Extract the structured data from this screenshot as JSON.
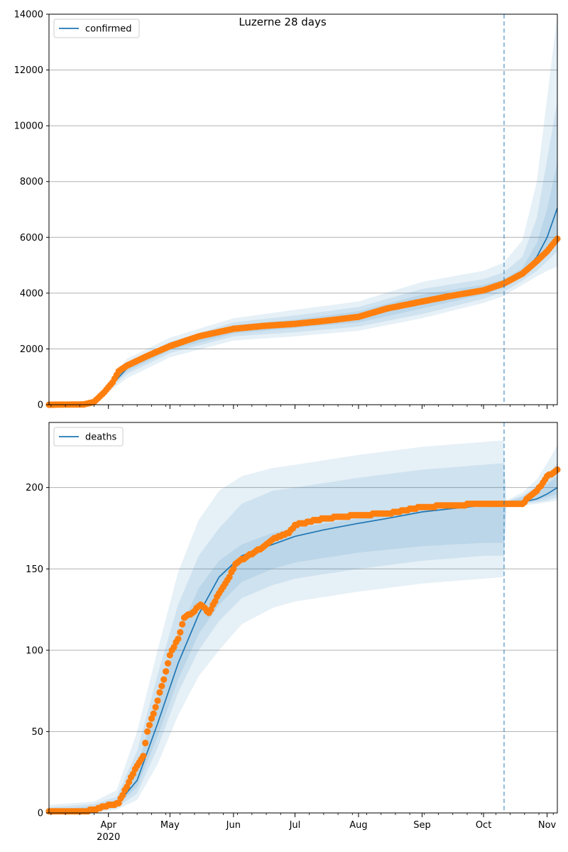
{
  "figure": {
    "title": "Luzerne 28 days"
  },
  "chart_data": [
    {
      "type": "line",
      "title": "Luzerne 28 days",
      "series": [
        {
          "name": "confirmed"
        },
        {
          "name": "observed"
        }
      ],
      "legend": "confirmed",
      "legend_position": "top-left",
      "grid": "horizontal",
      "ylim": [
        0,
        14000
      ],
      "yticks": [
        0,
        2000,
        4000,
        6000,
        8000,
        10000,
        12000,
        14000
      ],
      "ytick_labels": [
        "0",
        "2000",
        "4000",
        "6000",
        "8000",
        "10000",
        "12000",
        "14000"
      ],
      "xlim": [
        "2020-03-03",
        "2020-11-06"
      ],
      "forecast_start": "2020-10-11",
      "model_points": [
        [
          "2020-03-03",
          0
        ],
        [
          "2020-03-20",
          10
        ],
        [
          "2020-03-25",
          100
        ],
        [
          "2020-03-30",
          400
        ],
        [
          "2020-04-05",
          900
        ],
        [
          "2020-04-10",
          1300
        ],
        [
          "2020-04-20",
          1700
        ],
        [
          "2020-05-01",
          2050
        ],
        [
          "2020-05-15",
          2400
        ],
        [
          "2020-06-01",
          2700
        ],
        [
          "2020-06-15",
          2800
        ],
        [
          "2020-07-01",
          2900
        ],
        [
          "2020-07-15",
          3000
        ],
        [
          "2020-08-01",
          3150
        ],
        [
          "2020-08-15",
          3450
        ],
        [
          "2020-09-01",
          3700
        ],
        [
          "2020-09-15",
          3900
        ],
        [
          "2020-10-01",
          4100
        ],
        [
          "2020-10-11",
          4350
        ],
        [
          "2020-10-20",
          4700
        ],
        [
          "2020-10-27",
          5300
        ],
        [
          "2020-11-01",
          6000
        ],
        [
          "2020-11-06",
          7050
        ]
      ],
      "observed_points": [
        [
          "2020-03-03",
          0
        ],
        [
          "2020-03-20",
          10
        ],
        [
          "2020-03-25",
          100
        ],
        [
          "2020-03-30",
          450
        ],
        [
          "2020-04-03",
          800
        ],
        [
          "2020-04-06",
          1200
        ],
        [
          "2020-04-10",
          1400
        ],
        [
          "2020-04-20",
          1750
        ],
        [
          "2020-05-01",
          2100
        ],
        [
          "2020-05-15",
          2450
        ],
        [
          "2020-06-01",
          2720
        ],
        [
          "2020-06-15",
          2820
        ],
        [
          "2020-07-01",
          2900
        ],
        [
          "2020-07-15",
          3000
        ],
        [
          "2020-08-01",
          3150
        ],
        [
          "2020-08-15",
          3450
        ],
        [
          "2020-09-01",
          3700
        ],
        [
          "2020-09-15",
          3900
        ],
        [
          "2020-10-01",
          4100
        ],
        [
          "2020-10-11",
          4350
        ],
        [
          "2020-10-20",
          4700
        ],
        [
          "2020-10-27",
          5150
        ],
        [
          "2020-11-01",
          5500
        ],
        [
          "2020-11-06",
          5950
        ]
      ],
      "band_points": [
        {
          "x": "2020-03-03",
          "q": [
            0,
            0,
            0,
            0,
            0,
            0
          ]
        },
        {
          "x": "2020-03-25",
          "q": [
            70,
            85,
            95,
            105,
            120,
            140
          ]
        },
        {
          "x": "2020-04-10",
          "q": [
            950,
            1100,
            1200,
            1380,
            1500,
            1650
          ]
        },
        {
          "x": "2020-05-01",
          "q": [
            1700,
            1850,
            1950,
            2150,
            2250,
            2400
          ]
        },
        {
          "x": "2020-06-01",
          "q": [
            2300,
            2450,
            2550,
            2850,
            2950,
            3100
          ]
        },
        {
          "x": "2020-07-01",
          "q": [
            2450,
            2600,
            2750,
            3050,
            3200,
            3400
          ]
        },
        {
          "x": "2020-08-01",
          "q": [
            2650,
            2800,
            2950,
            3350,
            3500,
            3700
          ]
        },
        {
          "x": "2020-09-01",
          "q": [
            3100,
            3250,
            3450,
            3950,
            4150,
            4400
          ]
        },
        {
          "x": "2020-10-01",
          "q": [
            3650,
            3800,
            3950,
            4300,
            4500,
            4800
          ]
        },
        {
          "x": "2020-10-11",
          "q": [
            3900,
            4050,
            4200,
            4500,
            4750,
            5100
          ]
        },
        {
          "x": "2020-10-20",
          "q": [
            4300,
            4450,
            4600,
            4900,
            5300,
            5900
          ]
        },
        {
          "x": "2020-10-27",
          "q": [
            4600,
            4800,
            5000,
            5800,
            6700,
            8000
          ]
        },
        {
          "x": "2020-11-01",
          "q": [
            4800,
            5150,
            5500,
            7000,
            8800,
            11000
          ]
        },
        {
          "x": "2020-11-06",
          "q": [
            4950,
            5500,
            6100,
            8700,
            10900,
            14000
          ]
        }
      ]
    },
    {
      "type": "line",
      "series": [
        {
          "name": "deaths"
        },
        {
          "name": "observed"
        }
      ],
      "legend": "deaths",
      "legend_position": "top-left",
      "grid": "horizontal",
      "ylim": [
        0,
        240
      ],
      "yticks": [
        0,
        50,
        100,
        150,
        200
      ],
      "ytick_labels": [
        "0",
        "50",
        "100",
        "150",
        "200"
      ],
      "xlim": [
        "2020-03-03",
        "2020-11-06"
      ],
      "xtick_labels": [
        "Apr",
        "May",
        "Jun",
        "Jul",
        "Aug",
        "Sep",
        "Oct",
        "Nov"
      ],
      "xtick_dates": [
        "2020-04-01",
        "2020-05-01",
        "2020-06-01",
        "2020-07-01",
        "2020-08-01",
        "2020-09-01",
        "2020-10-01",
        "2020-11-01"
      ],
      "year_label": "2020",
      "forecast_start": "2020-10-11",
      "model_points": [
        [
          "2020-03-03",
          1
        ],
        [
          "2020-03-25",
          2
        ],
        [
          "2020-04-05",
          5
        ],
        [
          "2020-04-15",
          20
        ],
        [
          "2020-04-25",
          55
        ],
        [
          "2020-05-05",
          92
        ],
        [
          "2020-05-15",
          122
        ],
        [
          "2020-05-25",
          145
        ],
        [
          "2020-06-05",
          158
        ],
        [
          "2020-06-20",
          165
        ],
        [
          "2020-07-01",
          170
        ],
        [
          "2020-07-15",
          174
        ],
        [
          "2020-08-01",
          178
        ],
        [
          "2020-08-15",
          181
        ],
        [
          "2020-09-01",
          185
        ],
        [
          "2020-09-15",
          187
        ],
        [
          "2020-10-01",
          189
        ],
        [
          "2020-10-11",
          190
        ],
        [
          "2020-10-20",
          191
        ],
        [
          "2020-10-27",
          193
        ],
        [
          "2020-11-01",
          196
        ],
        [
          "2020-11-06",
          200
        ]
      ],
      "observed_points": [
        [
          "2020-03-03",
          1
        ],
        [
          "2020-03-20",
          1
        ],
        [
          "2020-03-25",
          2
        ],
        [
          "2020-03-30",
          4
        ],
        [
          "2020-04-03",
          5
        ],
        [
          "2020-04-06",
          6
        ],
        [
          "2020-04-10",
          16
        ],
        [
          "2020-04-14",
          27
        ],
        [
          "2020-04-18",
          35
        ],
        [
          "2020-04-20",
          50
        ],
        [
          "2020-04-24",
          65
        ],
        [
          "2020-04-28",
          82
        ],
        [
          "2020-05-01",
          97
        ],
        [
          "2020-05-05",
          107
        ],
        [
          "2020-05-08",
          120
        ],
        [
          "2020-05-12",
          123
        ],
        [
          "2020-05-16",
          128
        ],
        [
          "2020-05-20",
          123
        ],
        [
          "2020-05-25",
          135
        ],
        [
          "2020-05-30",
          145
        ],
        [
          "2020-06-02",
          153
        ],
        [
          "2020-06-08",
          158
        ],
        [
          "2020-06-15",
          163
        ],
        [
          "2020-06-20",
          168
        ],
        [
          "2020-06-28",
          172
        ],
        [
          "2020-07-01",
          177
        ],
        [
          "2020-07-15",
          181
        ],
        [
          "2020-08-01",
          183
        ],
        [
          "2020-08-15",
          184
        ],
        [
          "2020-09-01",
          188
        ],
        [
          "2020-09-15",
          189
        ],
        [
          "2020-10-01",
          190
        ],
        [
          "2020-10-11",
          190
        ],
        [
          "2020-10-20",
          190
        ],
        [
          "2020-10-23",
          194
        ],
        [
          "2020-10-27",
          198
        ],
        [
          "2020-10-30",
          203
        ],
        [
          "2020-11-01",
          207
        ],
        [
          "2020-11-04",
          209
        ],
        [
          "2020-11-06",
          211
        ]
      ],
      "band_points": [
        {
          "x": "2020-03-03",
          "q": [
            0,
            0,
            0.5,
            2,
            3.5,
            5
          ]
        },
        {
          "x": "2020-03-25",
          "q": [
            0,
            1,
            1.5,
            4,
            5.5,
            7
          ]
        },
        {
          "x": "2020-04-05",
          "q": [
            2,
            3,
            4,
            8,
            10,
            14
          ]
        },
        {
          "x": "2020-04-15",
          "q": [
            8,
            12,
            16,
            28,
            38,
            50
          ]
        },
        {
          "x": "2020-04-25",
          "q": [
            30,
            40,
            47,
            70,
            85,
            100
          ]
        },
        {
          "x": "2020-05-05",
          "q": [
            60,
            74,
            82,
            110,
            128,
            148
          ]
        },
        {
          "x": "2020-05-15",
          "q": [
            84,
            100,
            110,
            138,
            158,
            180
          ]
        },
        {
          "x": "2020-05-25",
          "q": [
            100,
            118,
            128,
            155,
            175,
            198
          ]
        },
        {
          "x": "2020-06-05",
          "q": [
            116,
            132,
            142,
            165,
            190,
            207
          ]
        },
        {
          "x": "2020-06-20",
          "q": [
            126,
            140,
            150,
            172,
            198,
            212
          ]
        },
        {
          "x": "2020-07-01",
          "q": [
            130,
            144,
            154,
            175,
            200,
            214
          ]
        },
        {
          "x": "2020-08-01",
          "q": [
            136,
            150,
            160,
            181,
            206,
            220
          ]
        },
        {
          "x": "2020-09-01",
          "q": [
            141,
            155,
            164,
            186,
            211,
            225
          ]
        },
        {
          "x": "2020-10-01",
          "q": [
            144,
            158,
            166,
            188,
            214,
            228
          ]
        },
        {
          "x": "2020-10-11",
          "q": [
            145,
            158,
            166,
            189,
            215,
            229
          ]
        },
        {
          "x": "2020-10-12",
          "q": [
            188,
            189,
            189.5,
            191,
            191.5,
            192
          ]
        },
        {
          "x": "2020-10-20",
          "q": [
            189,
            190,
            191,
            194,
            195,
            197
          ]
        },
        {
          "x": "2020-10-27",
          "q": [
            190,
            191,
            192,
            198,
            201,
            205
          ]
        },
        {
          "x": "2020-11-01",
          "q": [
            191,
            192,
            194,
            202,
            207,
            215
          ]
        },
        {
          "x": "2020-11-06",
          "q": [
            192,
            194,
            196,
            207,
            215,
            226
          ]
        }
      ]
    }
  ],
  "colors": {
    "model_line": "#1f77b4",
    "observed_points": "#ff7f0e",
    "band_fill": "#1f77b4",
    "forecast_line": "#1f77b4",
    "grid": "#b0b0b0"
  }
}
